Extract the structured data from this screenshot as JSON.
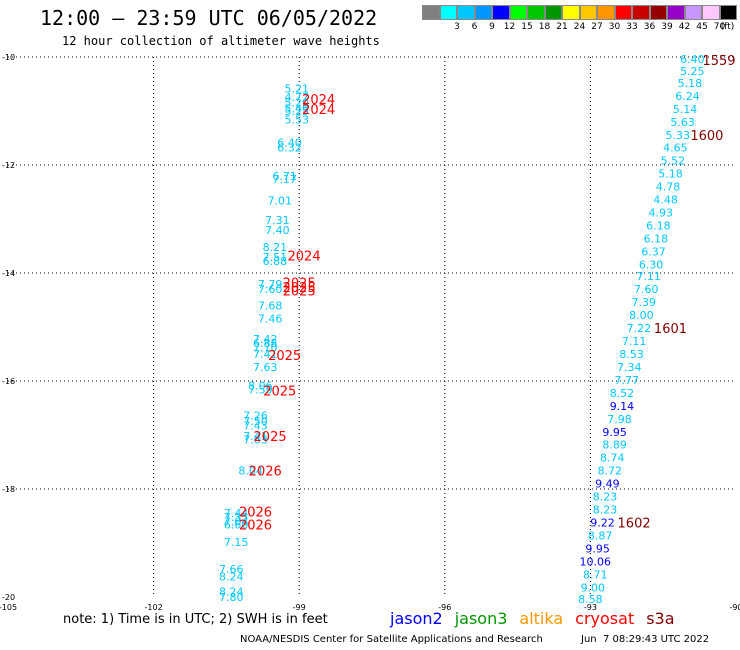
{
  "header": {
    "title": "12:00 – 23:59 UTC 06/05/2022",
    "subtitle": "12 hour collection of altimeter wave heights"
  },
  "legend": {
    "bins": [
      {
        "color": "#808080",
        "label": ""
      },
      {
        "color": "#00ffff",
        "label": "3"
      },
      {
        "color": "#00c8ff",
        "label": "6"
      },
      {
        "color": "#0096ff",
        "label": "9"
      },
      {
        "color": "#0000ff",
        "label": "12"
      },
      {
        "color": "#00ff00",
        "label": "15"
      },
      {
        "color": "#00c800",
        "label": "18"
      },
      {
        "color": "#009600",
        "label": "21"
      },
      {
        "color": "#ffff00",
        "label": "24"
      },
      {
        "color": "#ffc800",
        "label": "27"
      },
      {
        "color": "#ff9600",
        "label": "30"
      },
      {
        "color": "#ff0000",
        "label": "33"
      },
      {
        "color": "#c80000",
        "label": "36"
      },
      {
        "color": "#960000",
        "label": "39"
      },
      {
        "color": "#9600c8",
        "label": "42"
      },
      {
        "color": "#c896ff",
        "label": "45"
      },
      {
        "color": "#ffc8ff",
        "label": "70"
      },
      {
        "color": "#000000",
        "label": "(ft)"
      }
    ]
  },
  "map": {
    "lon_ticks": [
      "-105",
      "-102",
      "-99",
      "-96",
      "-93",
      "-90"
    ],
    "lat_ticks": [
      "-10",
      "-12",
      "-14",
      "-16",
      "-18",
      "-20"
    ]
  },
  "track_west": [
    {
      "lat": -10.58,
      "lon": -99.05,
      "v": "5.21"
    },
    {
      "lat": -10.74,
      "lon": -99.05,
      "v": "4.77"
    },
    {
      "lat": -10.84,
      "lon": -99.05,
      "v": "5.20"
    },
    {
      "lat": -10.95,
      "lon": -99.05,
      "v": "5.49"
    },
    {
      "lat": -11.0,
      "lon": -99.05,
      "v": "5.25"
    },
    {
      "lat": -11.16,
      "lon": -99.05,
      "v": "5.53"
    },
    {
      "lat": -11.58,
      "lon": -99.2,
      "v": "6.40"
    },
    {
      "lat": -11.68,
      "lon": -99.2,
      "v": "6.32"
    },
    {
      "lat": -12.2,
      "lon": -99.3,
      "v": "6.71"
    },
    {
      "lat": -12.26,
      "lon": -99.3,
      "v": "7.17"
    },
    {
      "lat": -12.66,
      "lon": -99.4,
      "v": "7.01"
    },
    {
      "lat": -13.02,
      "lon": -99.45,
      "v": "7.31"
    },
    {
      "lat": -13.2,
      "lon": -99.45,
      "v": "7.40"
    },
    {
      "lat": -13.52,
      "lon": -99.5,
      "v": "8.21"
    },
    {
      "lat": -13.7,
      "lon": -99.5,
      "v": "7.51"
    },
    {
      "lat": -13.78,
      "lon": -99.5,
      "v": "6.88"
    },
    {
      "lat": -14.2,
      "lon": -99.6,
      "v": "7.79"
    },
    {
      "lat": -14.3,
      "lon": -99.6,
      "v": "7.60"
    },
    {
      "lat": -14.6,
      "lon": -99.6,
      "v": "7.68"
    },
    {
      "lat": -14.84,
      "lon": -99.6,
      "v": "7.46"
    },
    {
      "lat": -15.22,
      "lon": -99.7,
      "v": "7.42"
    },
    {
      "lat": -15.3,
      "lon": -99.7,
      "v": "6.88"
    },
    {
      "lat": -15.38,
      "lon": -99.7,
      "v": "7.70"
    },
    {
      "lat": -15.5,
      "lon": -99.7,
      "v": "7.41"
    },
    {
      "lat": -15.74,
      "lon": -99.7,
      "v": "7.63"
    },
    {
      "lat": -16.08,
      "lon": -99.8,
      "v": "8.06"
    },
    {
      "lat": -16.16,
      "lon": -99.8,
      "v": "7.59"
    },
    {
      "lat": -16.64,
      "lon": -99.9,
      "v": "7.26"
    },
    {
      "lat": -16.74,
      "lon": -99.9,
      "v": "7.50"
    },
    {
      "lat": -16.82,
      "lon": -99.9,
      "v": "7.43"
    },
    {
      "lat": -17.02,
      "lon": -99.9,
      "v": "7.41"
    },
    {
      "lat": -17.08,
      "lon": -99.9,
      "v": "7.63"
    },
    {
      "lat": -17.66,
      "lon": -100.0,
      "v": "8.04"
    },
    {
      "lat": -18.44,
      "lon": -100.3,
      "v": "7.44"
    },
    {
      "lat": -18.52,
      "lon": -100.3,
      "v": "7.35"
    },
    {
      "lat": -18.6,
      "lon": -100.3,
      "v": "7.04"
    },
    {
      "lat": -18.66,
      "lon": -100.3,
      "v": "6.60"
    },
    {
      "lat": -18.98,
      "lon": -100.3,
      "v": "7.15"
    },
    {
      "lat": -19.48,
      "lon": -100.4,
      "v": "7.66"
    },
    {
      "lat": -19.62,
      "lon": -100.4,
      "v": "8.24"
    },
    {
      "lat": -19.9,
      "lon": -100.4,
      "v": "8.24"
    },
    {
      "lat": -20.0,
      "lon": -100.4,
      "v": "7.80"
    }
  ],
  "track_east": [
    {
      "lat": -10.04,
      "lon": -90.9,
      "v": "6.40",
      "c": "#00c8ff"
    },
    {
      "lat": -10.26,
      "lon": -90.9,
      "v": "5.25",
      "c": "#00c8ff"
    },
    {
      "lat": -10.48,
      "lon": -90.95,
      "v": "5.18",
      "c": "#00c8ff"
    },
    {
      "lat": -10.72,
      "lon": -91.0,
      "v": "6.24",
      "c": "#00c8ff"
    },
    {
      "lat": -10.96,
      "lon": -91.05,
      "v": "5.14",
      "c": "#00c8ff"
    },
    {
      "lat": -11.2,
      "lon": -91.1,
      "v": "5.63",
      "c": "#00c8ff"
    },
    {
      "lat": -11.44,
      "lon": -91.2,
      "v": "5.33",
      "c": "#00c8ff"
    },
    {
      "lat": -11.68,
      "lon": -91.25,
      "v": "4.65",
      "c": "#00c8ff"
    },
    {
      "lat": -11.92,
      "lon": -91.3,
      "v": "5.52",
      "c": "#00c8ff"
    },
    {
      "lat": -12.16,
      "lon": -91.35,
      "v": "5.18",
      "c": "#00c8ff"
    },
    {
      "lat": -12.4,
      "lon": -91.4,
      "v": "4.78",
      "c": "#00c8ff"
    },
    {
      "lat": -12.64,
      "lon": -91.45,
      "v": "4.48",
      "c": "#00c8ff"
    },
    {
      "lat": -12.88,
      "lon": -91.55,
      "v": "4.93",
      "c": "#00c8ff"
    },
    {
      "lat": -13.12,
      "lon": -91.6,
      "v": "6.18",
      "c": "#00c8ff"
    },
    {
      "lat": -13.36,
      "lon": -91.65,
      "v": "6.18",
      "c": "#00c8ff"
    },
    {
      "lat": -13.6,
      "lon": -91.7,
      "v": "6.37",
      "c": "#00c8ff"
    },
    {
      "lat": -13.84,
      "lon": -91.75,
      "v": "6.30",
      "c": "#00c8ff"
    },
    {
      "lat": -14.06,
      "lon": -91.8,
      "v": "7.11",
      "c": "#00c8ff"
    },
    {
      "lat": -14.3,
      "lon": -91.85,
      "v": "7.60",
      "c": "#00c8ff"
    },
    {
      "lat": -14.54,
      "lon": -91.9,
      "v": "7.39",
      "c": "#00c8ff"
    },
    {
      "lat": -14.78,
      "lon": -91.95,
      "v": "8.00",
      "c": "#00c8ff"
    },
    {
      "lat": -15.02,
      "lon": -92.0,
      "v": "7.22",
      "c": "#00c8ff"
    },
    {
      "lat": -15.26,
      "lon": -92.1,
      "v": "7.11",
      "c": "#00c8ff"
    },
    {
      "lat": -15.5,
      "lon": -92.15,
      "v": "8.53",
      "c": "#00c8ff"
    },
    {
      "lat": -15.74,
      "lon": -92.2,
      "v": "7.34",
      "c": "#00c8ff"
    },
    {
      "lat": -15.98,
      "lon": -92.25,
      "v": "7.77",
      "c": "#00c8ff"
    },
    {
      "lat": -16.22,
      "lon": -92.35,
      "v": "8.52",
      "c": "#00c8ff"
    },
    {
      "lat": -16.46,
      "lon": -92.35,
      "v": "9.14",
      "c": "#0000ff"
    },
    {
      "lat": -16.7,
      "lon": -92.4,
      "v": "7.98",
      "c": "#00c8ff"
    },
    {
      "lat": -16.94,
      "lon": -92.5,
      "v": "9.95",
      "c": "#0000ff"
    },
    {
      "lat": -17.18,
      "lon": -92.5,
      "v": "8.89",
      "c": "#00c8ff"
    },
    {
      "lat": -17.42,
      "lon": -92.55,
      "v": "8.74",
      "c": "#00c8ff"
    },
    {
      "lat": -17.66,
      "lon": -92.6,
      "v": "8.72",
      "c": "#00c8ff"
    },
    {
      "lat": -17.9,
      "lon": -92.65,
      "v": "9.49",
      "c": "#0000ff"
    },
    {
      "lat": -18.14,
      "lon": -92.7,
      "v": "8.23",
      "c": "#00c8ff"
    },
    {
      "lat": -18.38,
      "lon": -92.7,
      "v": "8.23",
      "c": "#00c8ff"
    },
    {
      "lat": -18.62,
      "lon": -92.75,
      "v": "9.22",
      "c": "#0000ff"
    },
    {
      "lat": -18.86,
      "lon": -92.8,
      "v": "8.87",
      "c": "#00c8ff"
    },
    {
      "lat": -19.1,
      "lon": -92.85,
      "v": "9.95",
      "c": "#0000ff"
    },
    {
      "lat": -19.34,
      "lon": -92.9,
      "v": "10.06",
      "c": "#0000ff"
    },
    {
      "lat": -19.58,
      "lon": -92.9,
      "v": "8.71",
      "c": "#00c8ff"
    },
    {
      "lat": -19.82,
      "lon": -92.95,
      "v": "9.00",
      "c": "#00c8ff"
    },
    {
      "lat": -20.04,
      "lon": -93.0,
      "v": "8.58",
      "c": "#00c8ff"
    }
  ],
  "time_labels": [
    {
      "lat": -10.78,
      "lon": -98.6,
      "t": "2024",
      "c": "#ff0000"
    },
    {
      "lat": -10.96,
      "lon": -98.6,
      "t": "2024",
      "c": "#ff0000"
    },
    {
      "lat": -13.68,
      "lon": -98.9,
      "t": "2024",
      "c": "#ff0000"
    },
    {
      "lat": -14.18,
      "lon": -99.0,
      "t": "2025",
      "c": "#ff0000"
    },
    {
      "lat": -14.26,
      "lon": -99.0,
      "t": "2025",
      "c": "#ff0000"
    },
    {
      "lat": -14.32,
      "lon": -99.0,
      "t": "2025",
      "c": "#ff0000"
    },
    {
      "lat": -15.52,
      "lon": -99.3,
      "t": "2025",
      "c": "#ff0000"
    },
    {
      "lat": -16.18,
      "lon": -99.4,
      "t": "2025",
      "c": "#ff0000"
    },
    {
      "lat": -17.02,
      "lon": -99.6,
      "t": "2025",
      "c": "#ff0000"
    },
    {
      "lat": -17.66,
      "lon": -99.7,
      "t": "2026",
      "c": "#ff0000"
    },
    {
      "lat": -18.42,
      "lon": -99.9,
      "t": "2026",
      "c": "#ff0000"
    },
    {
      "lat": -18.66,
      "lon": -99.9,
      "t": "2026",
      "c": "#ff0000"
    },
    {
      "lat": -10.06,
      "lon": -90.35,
      "t": "1559",
      "c": "#800000"
    },
    {
      "lat": -11.44,
      "lon": -90.6,
      "t": "1600",
      "c": "#800000"
    },
    {
      "lat": -15.02,
      "lon": -91.35,
      "t": "1601",
      "c": "#800000"
    },
    {
      "lat": -18.62,
      "lon": -92.1,
      "t": "1602",
      "c": "#800000"
    }
  ],
  "note": "note: 1) Time is in UTC; 2) SWH is in feet",
  "satellites": [
    {
      "name": "jason2",
      "color": "#0000ff"
    },
    {
      "name": "jason3",
      "color": "#009600"
    },
    {
      "name": "altika",
      "color": "#ff9600"
    },
    {
      "name": "cryosat",
      "color": "#ff0000"
    },
    {
      "name": "s3a",
      "color": "#800000"
    }
  ],
  "footer": {
    "credit": "NOAA/NESDIS Center for Satellite Applications and Research",
    "timestamp": "Jun  7 08:29:43 UTC 2022"
  }
}
